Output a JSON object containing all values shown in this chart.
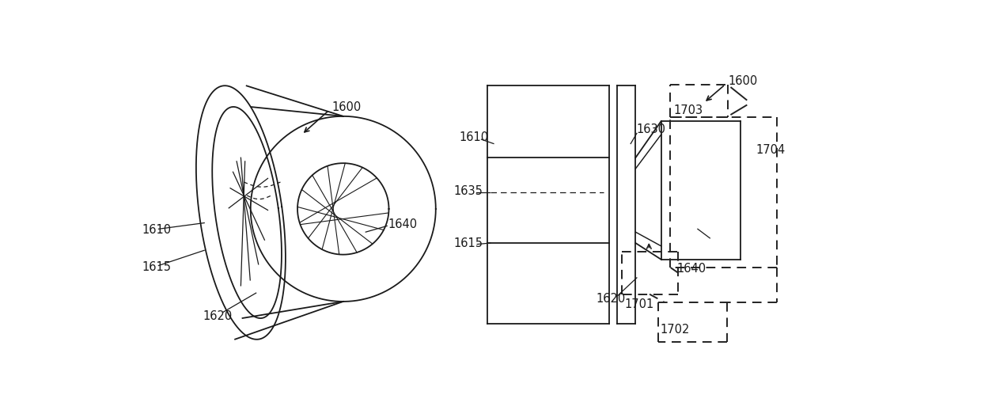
{
  "bg_color": "#ffffff",
  "line_color": "#1a1a1a",
  "dashed_color": "#222222",
  "label_color": "#111111",
  "lw": 1.3,
  "fs": 10.5
}
